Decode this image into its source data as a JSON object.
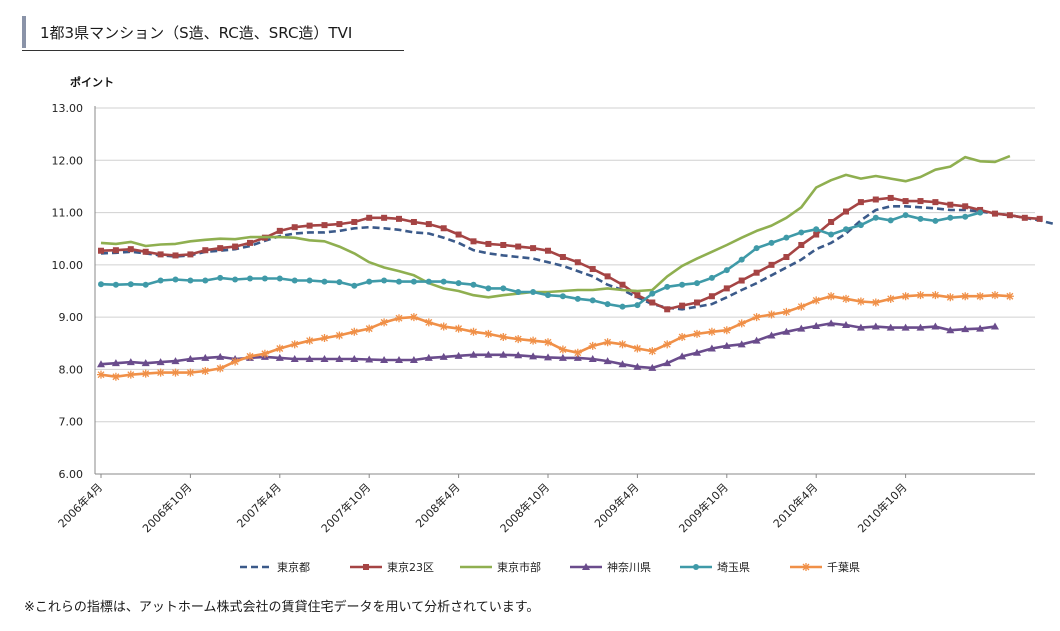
{
  "title": "1都3県マンション（S造、RC造、SRC造）TVI",
  "footnote": "※これらの指標は、アットホーム株式会社の賃貸住宅データを用いて分析されています。",
  "chart_data": {
    "type": "line",
    "ylabel": "ポイント",
    "ylim": [
      6.0,
      13.0
    ],
    "yticks": [
      "6.00",
      "7.00",
      "8.00",
      "9.00",
      "10.00",
      "11.00",
      "12.00",
      "13.00"
    ],
    "x_start": "2006年4月",
    "x_tick_labels": [
      "2006年4月",
      "2006年10月",
      "2007年4月",
      "2007年10月",
      "2008年4月",
      "2008年10月",
      "2009年4月",
      "2009年10月",
      "2010年4月",
      "2010年10月"
    ],
    "legend_position": "bottom",
    "series": [
      {
        "name": "東京都",
        "color": "#3b5a8a",
        "style": "dashed",
        "marker": "none",
        "values": [
          10.22,
          10.23,
          10.25,
          10.22,
          10.18,
          10.16,
          10.18,
          10.25,
          10.27,
          10.3,
          10.36,
          10.46,
          10.55,
          10.6,
          10.62,
          10.62,
          10.65,
          10.7,
          10.72,
          10.7,
          10.67,
          10.62,
          10.6,
          10.52,
          10.42,
          10.28,
          10.22,
          10.18,
          10.15,
          10.12,
          10.05,
          9.98,
          9.88,
          9.78,
          9.62,
          9.52,
          9.38,
          9.25,
          9.18,
          9.15,
          9.2,
          9.25,
          9.38,
          9.52,
          9.65,
          9.8,
          9.95,
          10.1,
          10.3,
          10.42,
          10.6,
          10.85,
          11.05,
          11.12,
          11.12,
          11.1,
          11.08,
          11.05,
          11.05,
          11.02,
          10.98,
          10.95,
          10.9,
          10.85,
          10.78
        ]
      },
      {
        "name": "東京23区",
        "color": "#a54444",
        "style": "solid",
        "marker": "square",
        "values": [
          10.27,
          10.28,
          10.3,
          10.25,
          10.2,
          10.18,
          10.2,
          10.28,
          10.32,
          10.35,
          10.42,
          10.52,
          10.65,
          10.72,
          10.75,
          10.76,
          10.78,
          10.82,
          10.9,
          10.9,
          10.88,
          10.82,
          10.78,
          10.7,
          10.58,
          10.45,
          10.4,
          10.38,
          10.35,
          10.32,
          10.27,
          10.15,
          10.05,
          9.92,
          9.78,
          9.62,
          9.42,
          9.28,
          9.15,
          9.22,
          9.28,
          9.4,
          9.55,
          9.7,
          9.85,
          10.0,
          10.15,
          10.38,
          10.58,
          10.82,
          11.02,
          11.2,
          11.25,
          11.28,
          11.22,
          11.22,
          11.2,
          11.15,
          11.12,
          11.05,
          10.98,
          10.95,
          10.9,
          10.88
        ]
      },
      {
        "name": "東京市部",
        "color": "#8faf50",
        "style": "solid",
        "marker": "none",
        "values": [
          10.42,
          10.4,
          10.44,
          10.36,
          10.39,
          10.4,
          10.45,
          10.48,
          10.5,
          10.49,
          10.53,
          10.53,
          10.53,
          10.52,
          10.47,
          10.45,
          10.35,
          10.22,
          10.05,
          9.95,
          9.88,
          9.8,
          9.65,
          9.55,
          9.5,
          9.42,
          9.38,
          9.42,
          9.45,
          9.48,
          9.48,
          9.5,
          9.52,
          9.52,
          9.55,
          9.52,
          9.5,
          9.52,
          9.78,
          9.98,
          10.12,
          10.25,
          10.38,
          10.52,
          10.65,
          10.75,
          10.9,
          11.1,
          11.48,
          11.62,
          11.72,
          11.65,
          11.7,
          11.65,
          11.6,
          11.68,
          11.82,
          11.88,
          12.06,
          11.98,
          11.97,
          12.08
        ]
      },
      {
        "name": "神奈川県",
        "color": "#6a4c8c",
        "style": "solid",
        "marker": "triangle",
        "values": [
          8.1,
          8.12,
          8.14,
          8.12,
          8.14,
          8.16,
          8.2,
          8.22,
          8.24,
          8.2,
          8.22,
          8.24,
          8.22,
          8.2,
          8.2,
          8.2,
          8.2,
          8.2,
          8.19,
          8.18,
          8.18,
          8.18,
          8.22,
          8.24,
          8.26,
          8.28,
          8.28,
          8.28,
          8.27,
          8.25,
          8.23,
          8.22,
          8.22,
          8.2,
          8.16,
          8.1,
          8.05,
          8.03,
          8.12,
          8.25,
          8.32,
          8.4,
          8.45,
          8.48,
          8.55,
          8.65,
          8.72,
          8.78,
          8.83,
          8.88,
          8.85,
          8.8,
          8.82,
          8.8,
          8.8,
          8.8,
          8.82,
          8.75,
          8.77,
          8.78,
          8.82
        ]
      },
      {
        "name": "埼玉県",
        "color": "#3f9aa8",
        "style": "solid",
        "marker": "circle",
        "values": [
          9.63,
          9.62,
          9.63,
          9.62,
          9.7,
          9.72,
          9.7,
          9.7,
          9.75,
          9.72,
          9.74,
          9.74,
          9.74,
          9.7,
          9.7,
          9.68,
          9.67,
          9.6,
          9.68,
          9.7,
          9.68,
          9.68,
          9.68,
          9.68,
          9.65,
          9.62,
          9.55,
          9.55,
          9.48,
          9.48,
          9.42,
          9.4,
          9.35,
          9.32,
          9.25,
          9.2,
          9.23,
          9.45,
          9.58,
          9.62,
          9.65,
          9.75,
          9.9,
          10.1,
          10.32,
          10.42,
          10.52,
          10.62,
          10.68,
          10.58,
          10.68,
          10.76,
          10.9,
          10.85,
          10.95,
          10.88,
          10.84,
          10.9,
          10.92,
          11.0
        ]
      },
      {
        "name": "千葉県",
        "color": "#f09048",
        "style": "solid",
        "marker": "star",
        "values": [
          7.9,
          7.86,
          7.9,
          7.92,
          7.94,
          7.94,
          7.94,
          7.97,
          8.02,
          8.15,
          8.25,
          8.3,
          8.4,
          8.48,
          8.55,
          8.6,
          8.65,
          8.72,
          8.78,
          8.9,
          8.98,
          9.0,
          8.9,
          8.82,
          8.78,
          8.72,
          8.68,
          8.62,
          8.58,
          8.55,
          8.52,
          8.38,
          8.32,
          8.45,
          8.52,
          8.48,
          8.4,
          8.35,
          8.48,
          8.62,
          8.68,
          8.72,
          8.75,
          8.88,
          9.0,
          9.05,
          9.1,
          9.2,
          9.32,
          9.4,
          9.35,
          9.3,
          9.28,
          9.35,
          9.4,
          9.42,
          9.42,
          9.38,
          9.4,
          9.4,
          9.42,
          9.4
        ]
      }
    ]
  }
}
